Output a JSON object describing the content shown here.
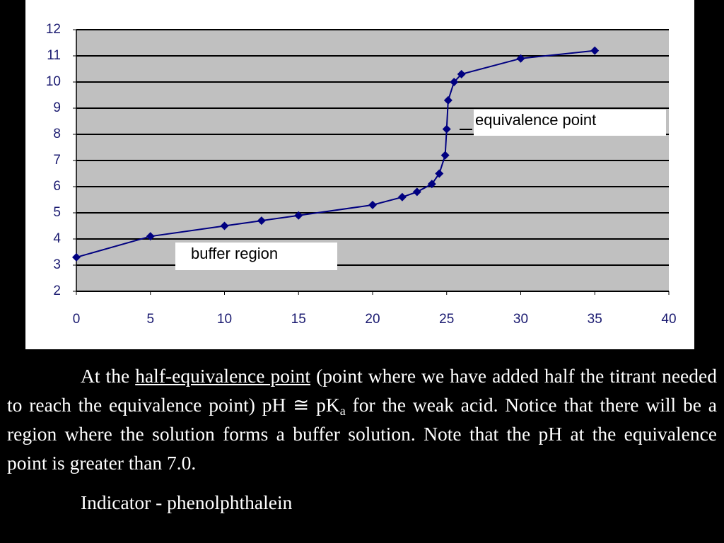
{
  "chart_data": {
    "type": "line",
    "x": [
      0,
      5,
      10,
      12.5,
      15,
      20,
      22,
      23,
      24,
      24.5,
      24.9,
      25,
      25.1,
      25.5,
      26,
      30,
      35
    ],
    "values": [
      3.3,
      4.1,
      4.5,
      4.7,
      4.9,
      5.3,
      5.6,
      5.8,
      6.1,
      6.5,
      7.2,
      8.2,
      9.3,
      10.0,
      10.3,
      10.9,
      11.2
    ],
    "color": "#000080",
    "xlim": [
      0,
      40
    ],
    "xticks": [
      0,
      5,
      10,
      15,
      20,
      25,
      30,
      35,
      40
    ],
    "ylim": [
      2,
      12
    ],
    "yticks": [
      2,
      3,
      4,
      5,
      6,
      7,
      8,
      9,
      10,
      11,
      12
    ],
    "grid": true,
    "annotations": [
      "equivalence point",
      "buffer region"
    ]
  },
  "text": {
    "paragraph": [
      "At the ",
      "half-equivalence point",
      " (point where we have added half the titrant needed to reach the equivalence point) pH ≅ pK",
      "a",
      " for the weak acid.  Notice that there will be a region where the solution forms a buffer solution.  Note that the pH at the equivalence point is greater than 7.0."
    ],
    "indicator": "Indicator - phenolphthalein"
  }
}
